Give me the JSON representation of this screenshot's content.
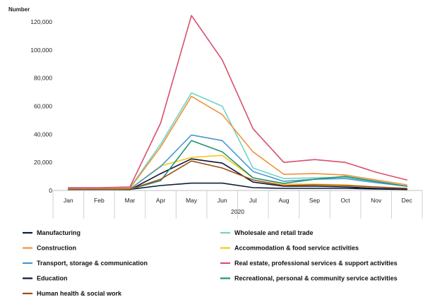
{
  "chart_data": {
    "type": "line",
    "title": "",
    "ylabel": "Number",
    "xlabel": "2020",
    "ylim": [
      0,
      120000
    ],
    "yticks": [
      "0",
      "20,000",
      "40,000",
      "60,000",
      "80,000",
      "100,000",
      "120,000"
    ],
    "ytick_values": [
      0,
      20000,
      40000,
      60000,
      80000,
      100000,
      120000
    ],
    "categories": [
      "Jan",
      "Feb",
      "Mar",
      "Apr",
      "May",
      "Jun",
      "Jul",
      "Aug",
      "Sep",
      "Oct",
      "Nov",
      "Dec"
    ],
    "grid": false,
    "legend_position": "bottom",
    "series": [
      {
        "name": "Manufacturing",
        "color": "#0d1b3e",
        "values": [
          500,
          500,
          800,
          3500,
          5200,
          5200,
          2000,
          1500,
          1500,
          1500,
          1000,
          700
        ]
      },
      {
        "name": "Wholesale and retail trade",
        "color": "#6fd6c6",
        "values": [
          1500,
          1500,
          2000,
          33000,
          69500,
          60000,
          16000,
          8500,
          9000,
          9500,
          6000,
          3000
        ]
      },
      {
        "name": "Construction",
        "color": "#f0923a",
        "values": [
          1200,
          1200,
          1500,
          31000,
          67000,
          54000,
          27500,
          11500,
          12000,
          11000,
          7500,
          4000
        ]
      },
      {
        "name": "Accommodation & food service activities",
        "color": "#f6c817",
        "values": [
          800,
          800,
          1000,
          17500,
          23500,
          25000,
          9000,
          4500,
          4500,
          4000,
          2500,
          1500
        ]
      },
      {
        "name": "Transport, storage & communication",
        "color": "#4a97d1",
        "values": [
          900,
          900,
          1000,
          17000,
          39500,
          35500,
          13500,
          6500,
          8000,
          8500,
          5500,
          3000
        ]
      },
      {
        "name": "Real estate, professional services & support activities",
        "color": "#d94f6e",
        "values": [
          2000,
          2000,
          2500,
          48000,
          124500,
          93000,
          44000,
          20000,
          22000,
          20000,
          13000,
          7500
        ]
      },
      {
        "name": "Education",
        "color": "#0a1736",
        "values": [
          300,
          300,
          500,
          12000,
          22500,
          19500,
          6000,
          3000,
          3000,
          2500,
          1500,
          800
        ]
      },
      {
        "name": "Recreational, personal & community service activities",
        "color": "#1f9374",
        "values": [
          600,
          600,
          800,
          7000,
          35500,
          27500,
          9000,
          5000,
          8000,
          10000,
          6500,
          3000
        ]
      },
      {
        "name": "Human health & social work",
        "color": "#9e4e14",
        "values": [
          700,
          700,
          900,
          8000,
          21000,
          16000,
          7500,
          3500,
          4000,
          3500,
          2500,
          1500
        ]
      }
    ]
  }
}
